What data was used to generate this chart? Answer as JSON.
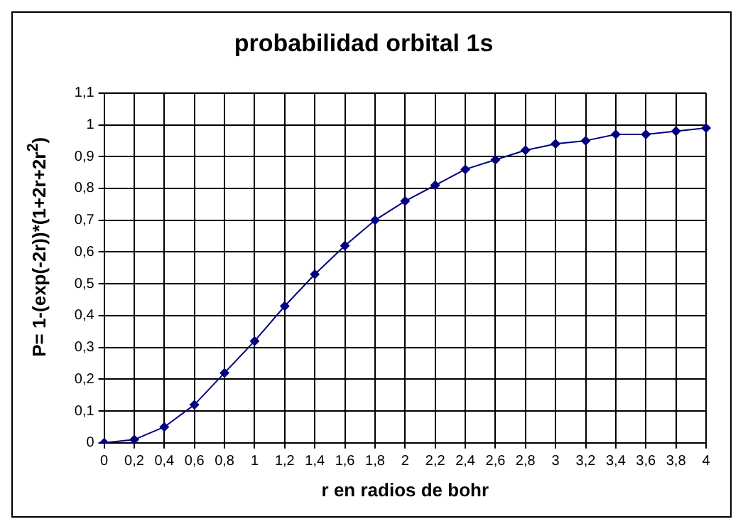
{
  "chart_data": {
    "type": "line",
    "title": "probabilidad orbital 1s",
    "xlabel": "r en radios de bohr",
    "ylabel": "P= 1-(exp(-2r))*(1+2r+2r$^{2}$)",
    "categories": [
      "0",
      "0,2",
      "0,4",
      "0,6",
      "0,8",
      "1",
      "1,2",
      "1,4",
      "1,6",
      "1,8",
      "2",
      "2,2",
      "2,4",
      "2,6",
      "2,8",
      "3",
      "3,2",
      "3,4",
      "3,6",
      "3,8",
      "4"
    ],
    "series": [
      {
        "color": "#000080",
        "values": [
          0,
          0.01,
          0.05,
          0.12,
          0.22,
          0.32,
          0.43,
          0.53,
          0.62,
          0.7,
          0.76,
          0.81,
          0.86,
          0.89,
          0.92,
          0.94,
          0.95,
          0.97,
          0.97,
          0.98,
          0.99
        ]
      }
    ],
    "ylim": [
      0,
      1.1
    ],
    "yticks": [
      0,
      {
        "value": 0.1,
        "label": "0,1"
      },
      {
        "value": 0.2,
        "label": "0,2"
      },
      {
        "value": 0.3,
        "label": "0,3"
      },
      {
        "value": 0.4,
        "label": "0,4"
      },
      {
        "value": 0.5,
        "label": "0,5"
      },
      {
        "value": 0.6,
        "label": "0,6"
      },
      {
        "value": 0.7,
        "label": "0,7"
      },
      {
        "value": 0.8,
        "label": "0,8"
      },
      {
        "value": 0.9,
        "label": "0,9"
      },
      1,
      {
        "value": 1.1,
        "label": "1,1"
      }
    ],
    "grid": true,
    "marker": "diamond",
    "line_style": "solid"
  }
}
